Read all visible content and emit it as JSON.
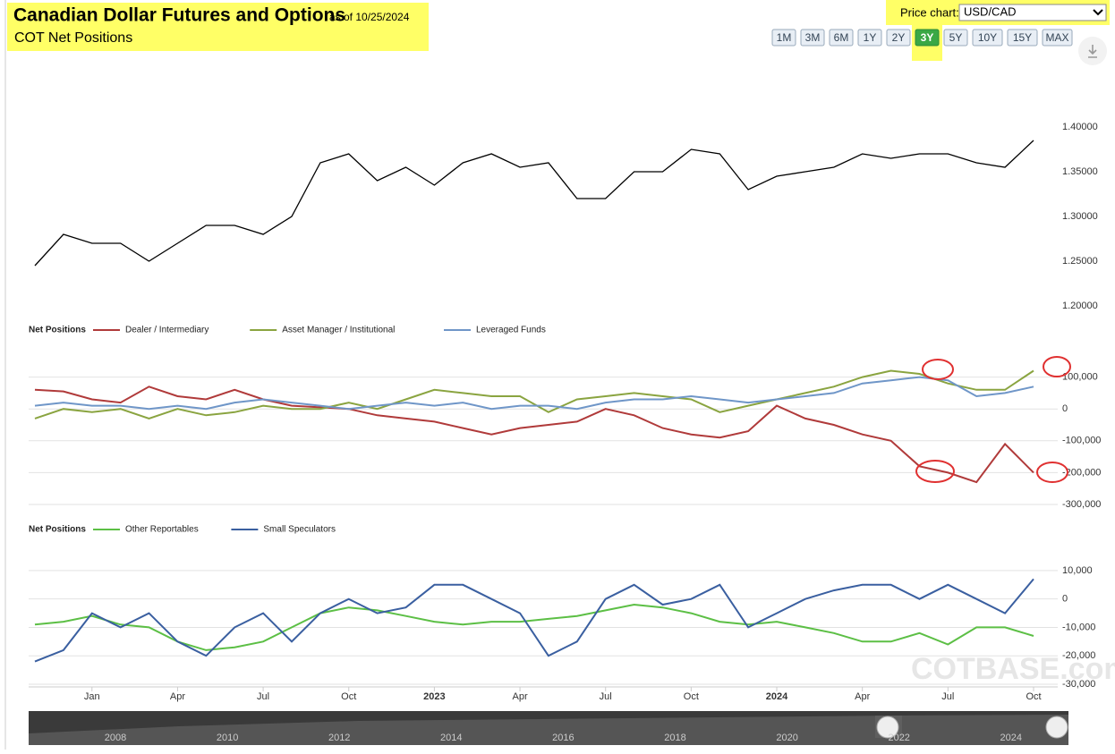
{
  "header": {
    "title": "Canadian Dollar Futures and Options",
    "date_note": "as of 10/25/2024",
    "subtitle": "COT Net Positions"
  },
  "price_chart": {
    "label": "Price chart:",
    "selected": "USD/CAD"
  },
  "ranges": {
    "buttons": [
      "1M",
      "3M",
      "6M",
      "1Y",
      "2Y",
      "3Y",
      "5Y",
      "10Y",
      "15Y",
      "MAX"
    ],
    "active": "3Y"
  },
  "watermark": "COTBASE.com",
  "navigator": {
    "years": [
      "2008",
      "2010",
      "2012",
      "2014",
      "2016",
      "2018",
      "2020",
      "2022",
      "2024"
    ]
  },
  "chart_data": [
    {
      "type": "line",
      "x": [
        "2021-11",
        "2021-12",
        "2022-01",
        "2022-02",
        "2022-03",
        "2022-04",
        "2022-05",
        "2022-06",
        "2022-07",
        "2022-08",
        "2022-09",
        "2022-10",
        "2022-11",
        "2022-12",
        "2023-01",
        "2023-02",
        "2023-03",
        "2023-04",
        "2023-05",
        "2023-06",
        "2023-07",
        "2023-08",
        "2023-09",
        "2023-10",
        "2023-11",
        "2023-12",
        "2024-01",
        "2024-02",
        "2024-03",
        "2024-04",
        "2024-05",
        "2024-06",
        "2024-07",
        "2024-08",
        "2024-09",
        "2024-10"
      ],
      "values": [
        1.245,
        1.28,
        1.27,
        1.27,
        1.25,
        1.27,
        1.29,
        1.29,
        1.28,
        1.3,
        1.36,
        1.37,
        1.34,
        1.355,
        1.335,
        1.36,
        1.37,
        1.355,
        1.36,
        1.32,
        1.32,
        1.35,
        1.35,
        1.375,
        1.37,
        1.33,
        1.345,
        1.35,
        1.355,
        1.37,
        1.365,
        1.37,
        1.37,
        1.36,
        1.355,
        1.385
      ],
      "color": "#000000",
      "ylim": [
        1.2,
        1.4
      ],
      "yticks": [
        {
          "value": 1.2,
          "label": "1.20000"
        },
        {
          "value": 1.25,
          "label": "1.25000"
        },
        {
          "value": 1.3,
          "label": "1.30000"
        },
        {
          "value": 1.35,
          "label": "1.35000"
        },
        {
          "value": 1.4,
          "label": "1.40000"
        }
      ],
      "grid": false
    },
    {
      "type": "line",
      "legend_title": "Net Positions",
      "x": [
        "2021-11",
        "2021-12",
        "2022-01",
        "2022-02",
        "2022-03",
        "2022-04",
        "2022-05",
        "2022-06",
        "2022-07",
        "2022-08",
        "2022-09",
        "2022-10",
        "2022-11",
        "2022-12",
        "2023-01",
        "2023-02",
        "2023-03",
        "2023-04",
        "2023-05",
        "2023-06",
        "2023-07",
        "2023-08",
        "2023-09",
        "2023-10",
        "2023-11",
        "2023-12",
        "2024-01",
        "2024-02",
        "2024-03",
        "2024-04",
        "2024-05",
        "2024-06",
        "2024-07",
        "2024-08",
        "2024-09",
        "2024-10"
      ],
      "series": [
        {
          "name": "Dealer / Intermediary",
          "color": "#b03a3a",
          "values": [
            60000,
            55000,
            30000,
            20000,
            70000,
            40000,
            30000,
            60000,
            30000,
            10000,
            5000,
            0,
            -20000,
            -30000,
            -40000,
            -60000,
            -80000,
            -60000,
            -50000,
            -40000,
            0,
            -20000,
            -60000,
            -80000,
            -90000,
            -70000,
            10000,
            -30000,
            -50000,
            -80000,
            -100000,
            -180000,
            -200000,
            -230000,
            -110000,
            -200000
          ]
        },
        {
          "name": "Asset Manager / Institutional",
          "color": "#8aa440",
          "values": [
            -30000,
            0,
            -10000,
            0,
            -30000,
            0,
            -20000,
            -10000,
            10000,
            0,
            0,
            20000,
            0,
            30000,
            60000,
            50000,
            40000,
            40000,
            -10000,
            30000,
            40000,
            50000,
            40000,
            30000,
            -10000,
            10000,
            30000,
            50000,
            70000,
            100000,
            120000,
            110000,
            80000,
            60000,
            60000,
            120000
          ]
        },
        {
          "name": "Leveraged Funds",
          "color": "#6f96c8",
          "values": [
            10000,
            20000,
            10000,
            10000,
            0,
            10000,
            0,
            20000,
            30000,
            20000,
            10000,
            0,
            10000,
            20000,
            10000,
            20000,
            0,
            10000,
            10000,
            0,
            20000,
            30000,
            30000,
            40000,
            30000,
            20000,
            30000,
            40000,
            50000,
            80000,
            90000,
            100000,
            90000,
            40000,
            50000,
            70000
          ]
        }
      ],
      "ylim": [
        -300000,
        200000
      ],
      "yticks": [
        {
          "value": -300000,
          "label": "-300,000"
        },
        {
          "value": -200000,
          "label": "-200,000"
        },
        {
          "value": -100000,
          "label": "-100,000"
        },
        0,
        {
          "value": 100000,
          "label": "100,000"
        }
      ],
      "grid": true
    },
    {
      "type": "line",
      "legend_title": "Net Positions",
      "x": [
        "2021-11",
        "2021-12",
        "2022-01",
        "2022-02",
        "2022-03",
        "2022-04",
        "2022-05",
        "2022-06",
        "2022-07",
        "2022-08",
        "2022-09",
        "2022-10",
        "2022-11",
        "2022-12",
        "2023-01",
        "2023-02",
        "2023-03",
        "2023-04",
        "2023-05",
        "2023-06",
        "2023-07",
        "2023-08",
        "2023-09",
        "2023-10",
        "2023-11",
        "2023-12",
        "2024-01",
        "2024-02",
        "2024-03",
        "2024-04",
        "2024-05",
        "2024-06",
        "2024-07",
        "2024-08",
        "2024-09",
        "2024-10"
      ],
      "series": [
        {
          "name": "Other Reportables",
          "color": "#5cbf45",
          "values": [
            -9000,
            -8000,
            -6000,
            -9000,
            -10000,
            -15000,
            -18000,
            -17000,
            -15000,
            -10000,
            -5000,
            -3000,
            -4000,
            -6000,
            -8000,
            -9000,
            -8000,
            -8000,
            -7000,
            -6000,
            -4000,
            -2000,
            -3000,
            -5000,
            -8000,
            -9000,
            -8000,
            -10000,
            -12000,
            -15000,
            -15000,
            -12000,
            -16000,
            -10000,
            -10000,
            -13000
          ]
        },
        {
          "name": "Small Speculators",
          "color": "#3a5fa0",
          "values": [
            -22000,
            -18000,
            -5000,
            -10000,
            -5000,
            -15000,
            -20000,
            -10000,
            -5000,
            -15000,
            -5000,
            0,
            -5000,
            -3000,
            5000,
            5000,
            0,
            -5000,
            -20000,
            -15000,
            0,
            5000,
            -2000,
            0,
            5000,
            -10000,
            -5000,
            0,
            3000,
            5000,
            5000,
            0,
            5000,
            0,
            -5000,
            7000
          ]
        }
      ],
      "ylim": [
        -30000,
        15000
      ],
      "yticks": [
        {
          "value": -30000,
          "label": "-30,000"
        },
        {
          "value": -20000,
          "label": "-20,000"
        },
        {
          "value": -10000,
          "label": "-10,000"
        },
        0,
        {
          "value": 10000,
          "label": "10,000"
        }
      ],
      "xticks": [
        {
          "value": "2022-01",
          "label": "Jan"
        },
        {
          "value": "2022-04",
          "label": "Apr"
        },
        {
          "value": "2022-07",
          "label": "Jul"
        },
        {
          "value": "2022-10",
          "label": "Oct"
        },
        {
          "value": "2023-01",
          "label": "2023"
        },
        {
          "value": "2023-04",
          "label": "Apr"
        },
        {
          "value": "2023-07",
          "label": "Jul"
        },
        {
          "value": "2023-10",
          "label": "Oct"
        },
        {
          "value": "2024-01",
          "label": "2024"
        },
        {
          "value": "2024-04",
          "label": "Apr"
        },
        {
          "value": "2024-07",
          "label": "Jul"
        },
        {
          "value": "2024-10",
          "label": "Oct"
        }
      ],
      "grid": true
    }
  ]
}
